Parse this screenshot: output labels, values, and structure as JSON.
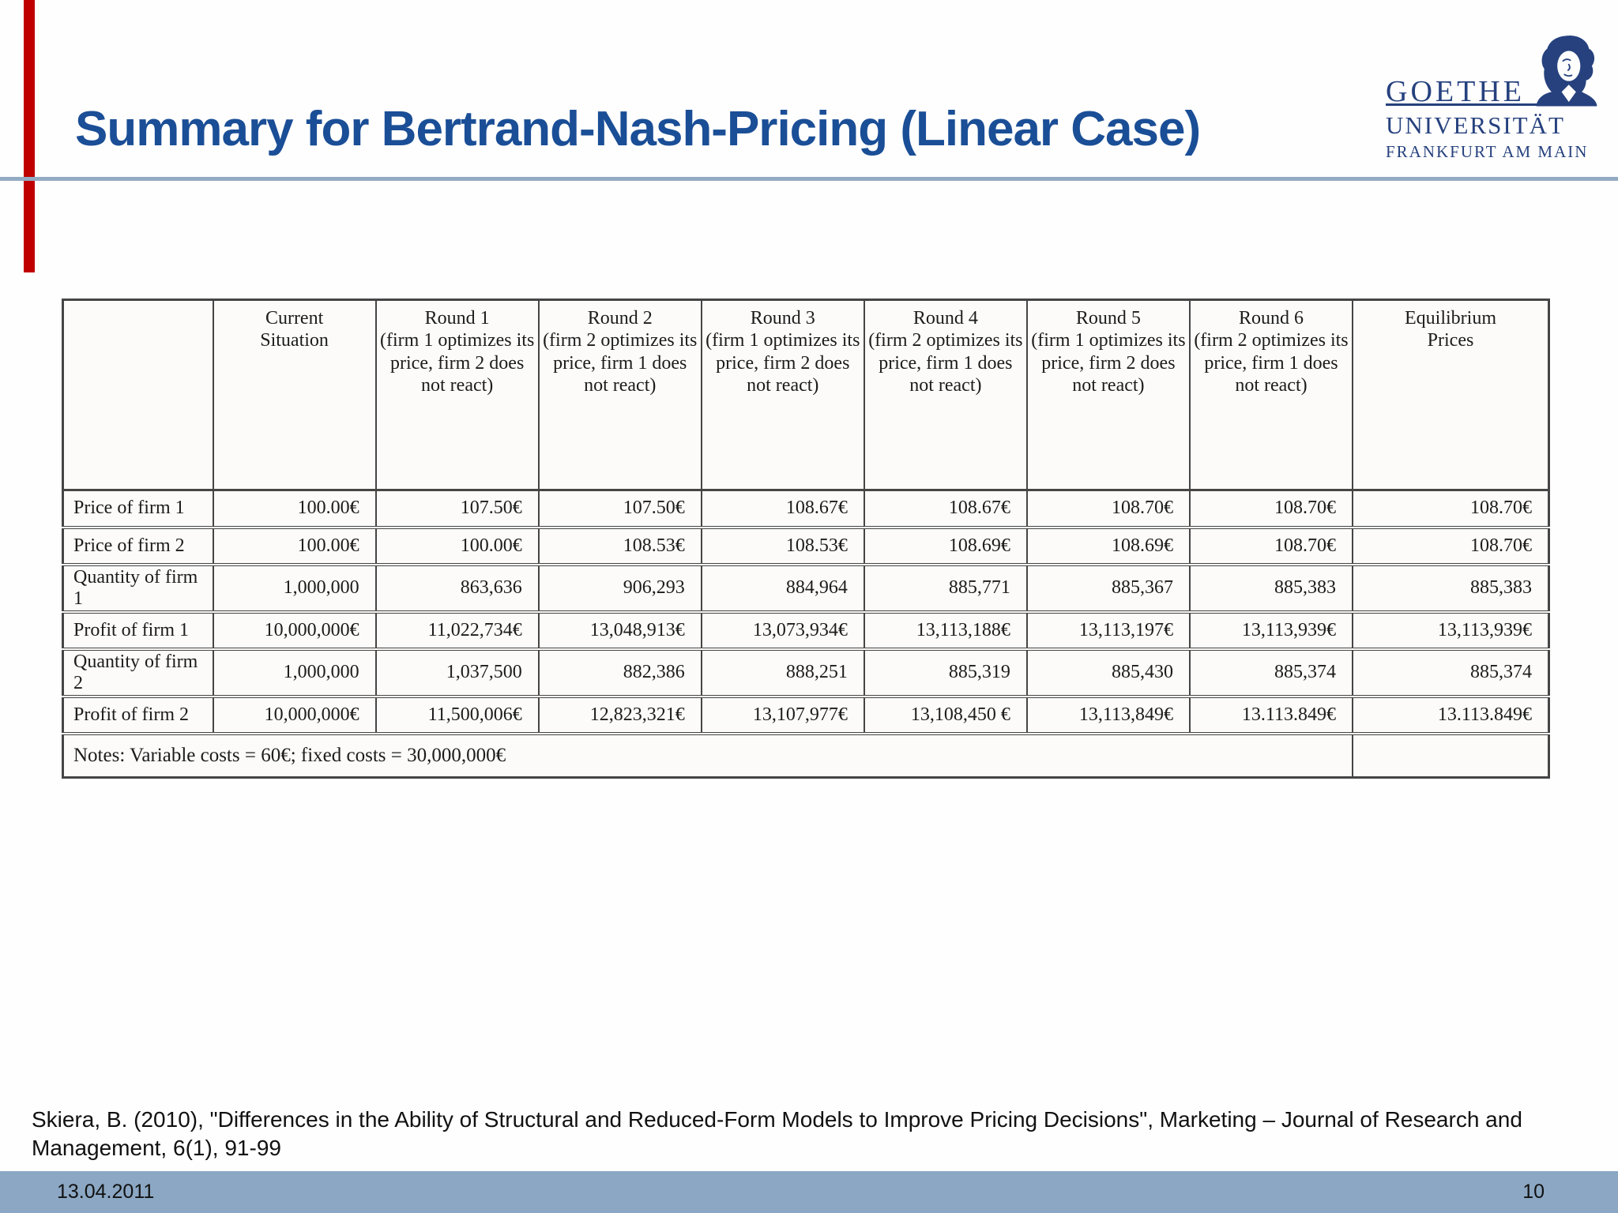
{
  "slide": {
    "title": "Summary for Bertrand-Nash-Pricing (Linear Case)"
  },
  "logo": {
    "name": "GOETHE",
    "line2": "UNIVERSITÄT",
    "line3": "FRANKFURT AM MAIN",
    "portrait_icon": "goethe-portrait"
  },
  "table": {
    "columns": [
      {
        "name": "",
        "detail": ""
      },
      {
        "name": "Current",
        "detail": "Situation"
      },
      {
        "name": "Round 1",
        "detail": "(firm 1 optimizes its price, firm 2 does not react)"
      },
      {
        "name": "Round 2",
        "detail": "(firm 2 optimizes its price, firm 1 does not react)"
      },
      {
        "name": "Round 3",
        "detail": "(firm 1 optimizes its price, firm 2 does not react)"
      },
      {
        "name": "Round 4",
        "detail": "(firm 2 optimizes its price, firm 1 does not react)"
      },
      {
        "name": "Round 5",
        "detail": "(firm 1 optimizes its price, firm 2 does not react)"
      },
      {
        "name": "Round 6",
        "detail": "(firm 2 optimizes its price, firm 1 does not react)"
      },
      {
        "name": "Equilibrium",
        "detail": "Prices"
      }
    ],
    "rows": [
      {
        "label": "Price of firm 1",
        "values": [
          "100.00€",
          "107.50€",
          "107.50€",
          "108.67€",
          "108.67€",
          "108.70€",
          "108.70€",
          "108.70€"
        ]
      },
      {
        "label": "Price of firm 2",
        "values": [
          "100.00€",
          "100.00€",
          "108.53€",
          "108.53€",
          "108.69€",
          "108.69€",
          "108.70€",
          "108.70€"
        ]
      },
      {
        "label": "Quantity of firm 1",
        "values": [
          "1,000,000",
          "863,636",
          "906,293",
          "884,964",
          "885,771",
          "885,367",
          "885,383",
          "885,383"
        ]
      },
      {
        "label": "Profit of firm 1",
        "values": [
          "10,000,000€",
          "11,022,734€",
          "13,048,913€",
          "13,073,934€",
          "13,113,188€",
          "13,113,197€",
          "13,113,939€",
          "13,113,939€"
        ]
      },
      {
        "label": "Quantity of firm 2",
        "values": [
          "1,000,000",
          "1,037,500",
          "882,386",
          "888,251",
          "885,319",
          "885,430",
          "885,374",
          "885,374"
        ]
      },
      {
        "label": "Profit of firm 2",
        "values": [
          "10,000,000€",
          "11,500,006€",
          "12,823,321€",
          "13,107,977€",
          "13,108,450 €",
          "13,113,849€",
          "13.113.849€",
          "13.113.849€"
        ]
      }
    ],
    "note": "Notes: Variable costs = 60€; fixed costs = 30,000,000€",
    "note_colspan": 8
  },
  "citation": {
    "line1": "Skiera, B. (2010), \"Differences in the Ability of Structural and Reduced-Form Models to Improve Pricing Decisions\", Marketing – Journal of Research and",
    "line2": "Management, 6(1), 91-99"
  },
  "footer": {
    "date": "13.04.2011",
    "page": "10"
  },
  "colors": {
    "title_blue": "#1a4e96",
    "logo_blue": "#26417e",
    "accent_red": "#c00000",
    "rule_gray_blue": "#93abc2",
    "footer_bg": "#8ba7c3",
    "table_border": "#454545"
  }
}
